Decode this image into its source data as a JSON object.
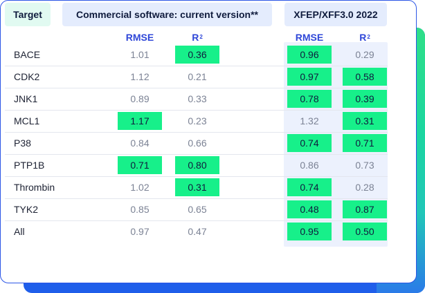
{
  "headers": {
    "target": "Target",
    "commercial": "Commercial software: current version**",
    "xfep": "XFEP/XFF3.0 2022"
  },
  "column_labels": {
    "rmse": "RMSE",
    "r": "R",
    "r_sup": "2"
  },
  "rows": [
    {
      "target": "BACE",
      "com_rmse": "1.01",
      "com_r2": "0.36",
      "xf_rmse": "0.96",
      "xf_r2": "0.29",
      "hl": {
        "com_rmse": false,
        "com_r2": true,
        "xf_rmse": true,
        "xf_r2": false
      }
    },
    {
      "target": "CDK2",
      "com_rmse": "1.12",
      "com_r2": "0.21",
      "xf_rmse": "0.97",
      "xf_r2": "0.58",
      "hl": {
        "com_rmse": false,
        "com_r2": false,
        "xf_rmse": true,
        "xf_r2": true
      }
    },
    {
      "target": "JNK1",
      "com_rmse": "0.89",
      "com_r2": "0.33",
      "xf_rmse": "0.78",
      "xf_r2": "0.39",
      "hl": {
        "com_rmse": false,
        "com_r2": false,
        "xf_rmse": true,
        "xf_r2": true
      }
    },
    {
      "target": "MCL1",
      "com_rmse": "1.17",
      "com_r2": "0.23",
      "xf_rmse": "1.32",
      "xf_r2": "0.31",
      "hl": {
        "com_rmse": true,
        "com_r2": false,
        "xf_rmse": false,
        "xf_r2": true
      }
    },
    {
      "target": "P38",
      "com_rmse": "0.84",
      "com_r2": "0.66",
      "xf_rmse": "0.74",
      "xf_r2": "0.71",
      "hl": {
        "com_rmse": false,
        "com_r2": false,
        "xf_rmse": true,
        "xf_r2": true
      }
    },
    {
      "target": "PTP1B",
      "com_rmse": "0.71",
      "com_r2": "0.80",
      "xf_rmse": "0.86",
      "xf_r2": "0.73",
      "hl": {
        "com_rmse": true,
        "com_r2": true,
        "xf_rmse": false,
        "xf_r2": false
      }
    },
    {
      "target": "Thrombin",
      "com_rmse": "1.02",
      "com_r2": "0.31",
      "xf_rmse": "0.74",
      "xf_r2": "0.28",
      "hl": {
        "com_rmse": false,
        "com_r2": true,
        "xf_rmse": true,
        "xf_r2": false
      }
    },
    {
      "target": "TYK2",
      "com_rmse": "0.85",
      "com_r2": "0.65",
      "xf_rmse": "0.48",
      "xf_r2": "0.87",
      "hl": {
        "com_rmse": false,
        "com_r2": false,
        "xf_rmse": true,
        "xf_r2": true
      }
    },
    {
      "target": "All",
      "com_rmse": "0.97",
      "com_r2": "0.47",
      "xf_rmse": "0.95",
      "xf_r2": "0.50",
      "hl": {
        "com_rmse": false,
        "com_r2": false,
        "xf_rmse": true,
        "xf_r2": true
      }
    }
  ],
  "colors": {
    "highlight": "#17f08a",
    "header_accent": "#2f47d8",
    "border": "#2b55e6"
  }
}
